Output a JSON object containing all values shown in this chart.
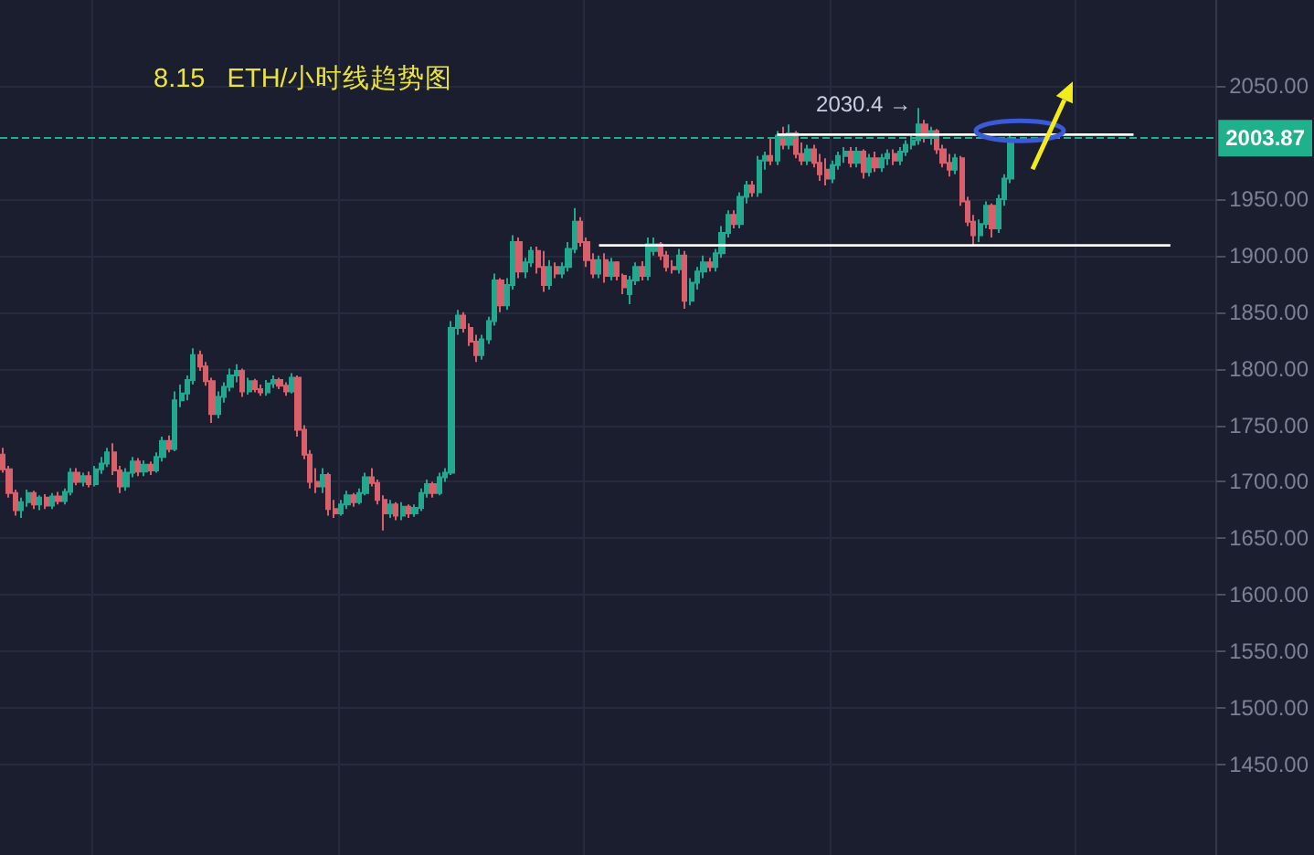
{
  "chart_data": {
    "type": "candlestick",
    "title": "8.15   ETH/小时线趋势图",
    "categories": [
      null,
      null,
      null,
      null,
      null,
      null,
      null,
      null,
      null,
      null,
      null,
      null,
      null,
      null,
      null,
      null,
      null,
      null,
      null,
      null,
      null,
      null,
      null,
      null,
      null,
      null,
      null,
      null,
      null,
      null,
      null,
      null,
      null,
      null,
      null,
      null,
      null,
      null,
      null,
      null,
      null,
      null,
      null,
      null,
      null,
      null,
      null,
      null,
      null,
      null,
      null,
      null,
      null,
      null,
      null,
      null,
      null,
      null,
      null,
      null,
      null,
      null,
      null,
      null,
      null,
      null,
      null,
      null,
      null,
      null,
      null,
      null,
      null,
      null,
      null,
      null,
      null,
      null,
      null,
      null,
      null,
      null,
      null,
      null,
      null,
      null,
      null,
      null,
      null,
      null,
      null,
      null,
      null,
      null,
      null,
      null,
      null,
      null,
      null,
      null,
      null,
      null,
      null,
      null,
      null,
      null,
      null,
      null,
      null,
      null,
      null,
      null,
      null,
      null,
      null,
      null,
      null,
      null,
      null,
      null,
      null,
      null,
      null,
      null,
      null,
      null,
      null,
      null,
      null,
      null,
      null,
      null,
      null,
      null,
      null,
      null,
      null,
      null,
      null,
      null,
      null,
      null,
      null,
      null,
      null,
      null,
      null,
      null,
      null,
      null,
      null,
      null,
      null,
      null,
      null,
      null,
      null,
      null,
      null,
      null,
      null,
      null,
      null,
      null,
      null,
      null,
      null,
      null,
      null,
      null,
      null,
      null,
      null,
      null,
      null,
      null,
      null,
      null,
      null,
      null,
      null,
      null,
      null,
      null,
      null,
      null,
      null,
      null,
      null,
      null,
      null,
      null,
      null,
      null,
      null,
      null,
      null,
      null
    ],
    "ohlc": [
      [
        1724,
        1730,
        1708,
        1711
      ],
      [
        1711,
        1714,
        1686,
        1690
      ],
      [
        1690,
        1693,
        1670,
        1675
      ],
      [
        1675,
        1686,
        1668,
        1682
      ],
      [
        1682,
        1693,
        1678,
        1690
      ],
      [
        1690,
        1692,
        1676,
        1680
      ],
      [
        1680,
        1688,
        1675,
        1686
      ],
      [
        1686,
        1689,
        1676,
        1679
      ],
      [
        1679,
        1690,
        1676,
        1687
      ],
      [
        1687,
        1691,
        1680,
        1683
      ],
      [
        1683,
        1694,
        1680,
        1691
      ],
      [
        1691,
        1712,
        1688,
        1708
      ],
      [
        1708,
        1712,
        1697,
        1700
      ],
      [
        1700,
        1708,
        1696,
        1705
      ],
      [
        1705,
        1709,
        1695,
        1698
      ],
      [
        1698,
        1714,
        1696,
        1711
      ],
      [
        1711,
        1722,
        1707,
        1716
      ],
      [
        1716,
        1730,
        1713,
        1726
      ],
      [
        1726,
        1734,
        1706,
        1710
      ],
      [
        1710,
        1714,
        1690,
        1696
      ],
      [
        1696,
        1712,
        1692,
        1708
      ],
      [
        1708,
        1722,
        1704,
        1718
      ],
      [
        1718,
        1721,
        1705,
        1709
      ],
      [
        1709,
        1719,
        1705,
        1715
      ],
      [
        1715,
        1718,
        1706,
        1710
      ],
      [
        1710,
        1726,
        1708,
        1722
      ],
      [
        1722,
        1740,
        1718,
        1736
      ],
      [
        1736,
        1741,
        1726,
        1729
      ],
      [
        1729,
        1780,
        1727,
        1772
      ],
      [
        1772,
        1786,
        1766,
        1778
      ],
      [
        1778,
        1794,
        1772,
        1790
      ],
      [
        1790,
        1818,
        1786,
        1812
      ],
      [
        1812,
        1816,
        1798,
        1802
      ],
      [
        1802,
        1806,
        1785,
        1789
      ],
      [
        1789,
        1792,
        1752,
        1760
      ],
      [
        1760,
        1780,
        1756,
        1775
      ],
      [
        1775,
        1788,
        1770,
        1784
      ],
      [
        1784,
        1800,
        1780,
        1794
      ],
      [
        1794,
        1804,
        1788,
        1798
      ],
      [
        1798,
        1800,
        1775,
        1780
      ],
      [
        1780,
        1792,
        1777,
        1789
      ],
      [
        1789,
        1791,
        1779,
        1782
      ],
      [
        1782,
        1786,
        1776,
        1779
      ],
      [
        1779,
        1790,
        1776,
        1787
      ],
      [
        1787,
        1794,
        1783,
        1790
      ],
      [
        1790,
        1792,
        1782,
        1785
      ],
      [
        1785,
        1788,
        1776,
        1780
      ],
      [
        1780,
        1796,
        1778,
        1792
      ],
      [
        1792,
        1794,
        1740,
        1746
      ],
      [
        1746,
        1750,
        1720,
        1724
      ],
      [
        1724,
        1728,
        1694,
        1700
      ],
      [
        1700,
        1712,
        1690,
        1696
      ],
      [
        1696,
        1712,
        1690,
        1706
      ],
      [
        1706,
        1708,
        1670,
        1676
      ],
      [
        1676,
        1684,
        1668,
        1672
      ],
      [
        1672,
        1684,
        1670,
        1680
      ],
      [
        1680,
        1692,
        1676,
        1688
      ],
      [
        1688,
        1690,
        1678,
        1682
      ],
      [
        1682,
        1694,
        1680,
        1690
      ],
      [
        1690,
        1708,
        1688,
        1704
      ],
      [
        1704,
        1712,
        1696,
        1699
      ],
      [
        1699,
        1702,
        1680,
        1684
      ],
      [
        1684,
        1688,
        1657,
        1672
      ],
      [
        1672,
        1684,
        1668,
        1680
      ],
      [
        1680,
        1682,
        1666,
        1670
      ],
      [
        1670,
        1682,
        1666,
        1678
      ],
      [
        1678,
        1680,
        1668,
        1672
      ],
      [
        1672,
        1680,
        1669,
        1677
      ],
      [
        1677,
        1694,
        1674,
        1690
      ],
      [
        1690,
        1702,
        1686,
        1698
      ],
      [
        1698,
        1700,
        1686,
        1690
      ],
      [
        1690,
        1708,
        1688,
        1704
      ],
      [
        1704,
        1712,
        1700,
        1708
      ],
      [
        1708,
        1842,
        1706,
        1836
      ],
      [
        1836,
        1852,
        1830,
        1847
      ],
      [
        1847,
        1850,
        1832,
        1836
      ],
      [
        1836,
        1840,
        1820,
        1824
      ],
      [
        1824,
        1830,
        1806,
        1812
      ],
      [
        1812,
        1830,
        1808,
        1826
      ],
      [
        1826,
        1846,
        1822,
        1842
      ],
      [
        1842,
        1884,
        1838,
        1878
      ],
      [
        1878,
        1880,
        1850,
        1856
      ],
      [
        1856,
        1880,
        1852,
        1874
      ],
      [
        1874,
        1918,
        1870,
        1912
      ],
      [
        1912,
        1916,
        1880,
        1886
      ],
      [
        1886,
        1898,
        1880,
        1894
      ],
      [
        1894,
        1908,
        1890,
        1904
      ],
      [
        1904,
        1908,
        1884,
        1890
      ],
      [
        1890,
        1904,
        1868,
        1874
      ],
      [
        1874,
        1896,
        1870,
        1890
      ],
      [
        1890,
        1894,
        1880,
        1884
      ],
      [
        1884,
        1894,
        1880,
        1890
      ],
      [
        1890,
        1912,
        1886,
        1906
      ],
      [
        1906,
        1942,
        1902,
        1930
      ],
      [
        1930,
        1934,
        1908,
        1912
      ],
      [
        1912,
        1916,
        1890,
        1896
      ],
      [
        1896,
        1902,
        1880,
        1884
      ],
      [
        1884,
        1900,
        1880,
        1896
      ],
      [
        1896,
        1902,
        1876,
        1882
      ],
      [
        1882,
        1898,
        1878,
        1894
      ],
      [
        1894,
        1895,
        1878,
        1882
      ],
      [
        1882,
        1884,
        1866,
        1872
      ],
      [
        1866,
        1882,
        1857,
        1878
      ],
      [
        1878,
        1894,
        1874,
        1890
      ],
      [
        1890,
        1895,
        1878,
        1882
      ],
      [
        1882,
        1916,
        1878,
        1910
      ],
      [
        1904,
        1916,
        1900,
        1910
      ],
      [
        1910,
        1912,
        1896,
        1900
      ],
      [
        1900,
        1904,
        1886,
        1890
      ],
      [
        1890,
        1896,
        1884,
        1888
      ],
      [
        1888,
        1906,
        1884,
        1900
      ],
      [
        1900,
        1904,
        1853,
        1860
      ],
      [
        1860,
        1880,
        1856,
        1876
      ],
      [
        1876,
        1890,
        1870,
        1886
      ],
      [
        1886,
        1900,
        1880,
        1894
      ],
      [
        1894,
        1898,
        1886,
        1890
      ],
      [
        1890,
        1906,
        1886,
        1902
      ],
      [
        1902,
        1926,
        1898,
        1920
      ],
      [
        1920,
        1940,
        1916,
        1936
      ],
      [
        1936,
        1940,
        1924,
        1928
      ],
      [
        1928,
        1956,
        1924,
        1952
      ],
      [
        1952,
        1966,
        1946,
        1962
      ],
      [
        1962,
        1966,
        1952,
        1956
      ],
      [
        1956,
        1988,
        1952,
        1984
      ],
      [
        1984,
        1992,
        1976,
        1988
      ],
      [
        1988,
        2004,
        1980,
        1984
      ],
      [
        1984,
        2010,
        1980,
        2006
      ],
      [
        2006,
        2014,
        1994,
        1998
      ],
      [
        1998,
        2016,
        1994,
        2008
      ],
      [
        2008,
        2010,
        1986,
        1990
      ],
      [
        1990,
        2000,
        1980,
        1984
      ],
      [
        1984,
        1998,
        1980,
        1994
      ],
      [
        1994,
        1998,
        1978,
        1982
      ],
      [
        1982,
        1990,
        1966,
        1972
      ],
      [
        1976,
        1986,
        1962,
        1968
      ],
      [
        1968,
        1984,
        1964,
        1980
      ],
      [
        1980,
        1992,
        1976,
        1988
      ],
      [
        1988,
        1996,
        1982,
        1992
      ],
      [
        1992,
        1996,
        1978,
        1982
      ],
      [
        1982,
        1996,
        1978,
        1992
      ],
      [
        1992,
        1994,
        1968,
        1974
      ],
      [
        1974,
        1990,
        1970,
        1986
      ],
      [
        1986,
        1992,
        1974,
        1978
      ],
      [
        1978,
        1990,
        1974,
        1986
      ],
      [
        1986,
        1994,
        1980,
        1990
      ],
      [
        1990,
        1994,
        1980,
        1984
      ],
      [
        1984,
        1996,
        1980,
        1992
      ],
      [
        1992,
        2002,
        1988,
        1998
      ],
      [
        1998,
        2006,
        1994,
        2002
      ],
      [
        2002,
        2030.4,
        1998,
        2016
      ],
      [
        2016,
        2020,
        2000,
        2004
      ],
      [
        2004,
        2014,
        1998,
        2010
      ],
      [
        2010,
        2012,
        1990,
        1994
      ],
      [
        1994,
        1998,
        1978,
        1982
      ],
      [
        1982,
        1990,
        1970,
        1976
      ],
      [
        1976,
        1990,
        1972,
        1986
      ],
      [
        1986,
        1988,
        1944,
        1948
      ],
      [
        1948,
        1952,
        1926,
        1930
      ],
      [
        1930,
        1936,
        1909,
        1918
      ],
      [
        1918,
        1932,
        1912,
        1928
      ],
      [
        1928,
        1948,
        1924,
        1944
      ],
      [
        1944,
        1946,
        1916,
        1924
      ],
      [
        1924,
        1954,
        1920,
        1950
      ],
      [
        1950,
        1972,
        1944,
        1968
      ],
      [
        1968,
        2008,
        1964,
        2003.87
      ],
      null,
      null,
      null,
      null,
      null,
      null,
      null,
      null,
      null,
      null,
      null,
      null,
      null,
      null,
      null,
      null,
      null,
      null,
      null,
      null,
      null,
      null,
      null,
      null,
      null,
      null,
      null,
      null,
      null,
      null,
      null,
      null,
      null
    ],
    "colors": [
      "#d95f6a",
      "#d95f6a",
      "#d95f6a",
      "#22a88e",
      "#22a88e",
      "#d95f6a",
      "#22a88e",
      "#d95f6a",
      "#22a88e",
      "#d95f6a",
      "#22a88e",
      "#22a88e",
      "#d95f6a",
      "#22a88e",
      "#d95f6a",
      "#22a88e",
      "#22a88e",
      "#22a88e",
      "#d95f6a",
      "#d95f6a",
      "#22a88e",
      "#22a88e",
      "#d95f6a",
      "#22a88e",
      "#d95f6a",
      "#22a88e",
      "#22a88e",
      "#d95f6a",
      "#22a88e",
      "#22a88e",
      "#22a88e",
      "#22a88e",
      "#d95f6a",
      "#d95f6a",
      "#d95f6a",
      "#22a88e",
      "#22a88e",
      "#22a88e",
      "#22a88e",
      "#d95f6a",
      "#22a88e",
      "#d95f6a",
      "#d95f6a",
      "#22a88e",
      "#22a88e",
      "#d95f6a",
      "#d95f6a",
      "#22a88e",
      "#d95f6a",
      "#d95f6a",
      "#d95f6a",
      "#d95f6a",
      "#22a88e",
      "#d95f6a",
      "#d95f6a",
      "#22a88e",
      "#22a88e",
      "#d95f6a",
      "#22a88e",
      "#22a88e",
      "#d95f6a",
      "#d95f6a",
      "#d95f6a",
      "#22a88e",
      "#d95f6a",
      "#22a88e",
      "#d95f6a",
      "#22a88e",
      "#22a88e",
      "#22a88e",
      "#d95f6a",
      "#22a88e",
      "#22a88e",
      "#22a88e",
      "#22a88e",
      "#d95f6a",
      "#d95f6a",
      "#d95f6a",
      "#22a88e",
      "#22a88e",
      "#22a88e",
      "#d95f6a",
      "#22a88e",
      "#22a88e",
      "#d95f6a",
      "#22a88e",
      "#22a88e",
      "#d95f6a",
      "#d95f6a",
      "#22a88e",
      "#d95f6a",
      "#22a88e",
      "#22a88e",
      "#22a88e",
      "#d95f6a",
      "#d95f6a",
      "#d95f6a",
      "#22a88e",
      "#d95f6a",
      "#22a88e",
      "#d95f6a",
      "#d95f6a",
      "#22a88e",
      "#22a88e",
      "#d95f6a",
      "#22a88e",
      "#22a88e",
      "#d95f6a",
      "#d95f6a",
      "#d95f6a",
      "#22a88e",
      "#d95f6a",
      "#22a88e",
      "#22a88e",
      "#22a88e",
      "#d95f6a",
      "#22a88e",
      "#22a88e",
      "#22a88e",
      "#d95f6a",
      "#22a88e",
      "#22a88e",
      "#d95f6a",
      "#22a88e",
      "#22a88e",
      "#d95f6a",
      "#22a88e",
      "#d95f6a",
      "#22a88e",
      "#d95f6a",
      "#d95f6a",
      "#22a88e",
      "#d95f6a",
      "#d95f6a",
      "#d95f6a",
      "#22a88e",
      "#22a88e",
      "#22a88e",
      "#d95f6a",
      "#22a88e",
      "#d95f6a",
      "#22a88e",
      "#d95f6a",
      "#22a88e",
      "#22a88e",
      "#d95f6a",
      "#22a88e",
      "#22a88e",
      "#22a88e",
      "#22a88e",
      "#d95f6a",
      "#22a88e",
      "#d95f6a",
      "#d95f6a",
      "#d95f6a",
      "#22a88e",
      "#d95f6a",
      "#d95f6a",
      "#d95f6a",
      "#22a88e",
      "#22a88e",
      "#d95f6a",
      "#22a88e",
      "#22a88e",
      "#22a88e",
      null,
      null,
      null,
      null,
      null,
      null,
      null,
      null,
      null,
      null,
      null,
      null,
      null,
      null,
      null,
      null,
      null,
      null,
      null,
      null,
      null,
      null,
      null,
      null,
      null,
      null,
      null,
      null,
      null,
      null,
      null,
      null,
      null
    ],
    "series": [
      {
        "type": "line",
        "color": "#ffffff",
        "values": [
          null,
          null,
          null,
          null,
          null,
          null,
          null,
          null,
          null,
          null,
          null,
          null,
          null,
          null,
          null,
          null,
          null,
          null,
          null,
          null,
          null,
          null,
          null,
          null,
          null,
          null,
          null,
          null,
          null,
          null,
          null,
          null,
          null,
          null,
          null,
          null,
          null,
          null,
          null,
          null,
          null,
          null,
          null,
          null,
          null,
          null,
          null,
          null,
          null,
          null,
          null,
          null,
          null,
          null,
          null,
          null,
          null,
          null,
          null,
          null,
          null,
          null,
          null,
          null,
          null,
          null,
          null,
          null,
          null,
          null,
          null,
          null,
          null,
          null,
          null,
          null,
          null,
          null,
          null,
          null,
          null,
          null,
          null,
          null,
          null,
          null,
          null,
          null,
          null,
          null,
          null,
          null,
          null,
          null,
          null,
          null,
          null,
          1909,
          1909,
          1909,
          1909,
          1909,
          1909,
          1909,
          1909,
          1909,
          1909,
          1909,
          1909,
          1909,
          1909,
          1909,
          1909,
          1909,
          1909,
          1909,
          1909,
          1909,
          1909,
          1909,
          1909,
          1909,
          1909,
          1909,
          1909,
          1909,
          1909,
          1909,
          1909,
          1909,
          1909,
          1909,
          1909,
          1909,
          1909,
          1909,
          1909,
          1909,
          1909,
          1909,
          1909,
          1909,
          1909,
          1909,
          1909,
          1909,
          1909,
          1909,
          1909,
          1909,
          1909,
          1909,
          1909,
          1909,
          1909,
          1909,
          1909,
          1909,
          1909,
          1909,
          1909,
          1909,
          1909,
          1909,
          1909,
          1909,
          1909,
          1909,
          1909,
          1909,
          1909,
          1909,
          1909,
          1909,
          1909,
          1909,
          1909,
          1909,
          1909,
          1909,
          1909,
          1909,
          1909,
          1909,
          1909,
          1909,
          1909,
          1909,
          1909,
          1909,
          1909,
          null,
          null,
          null,
          null,
          null,
          null,
          null
        ]
      },
      {
        "type": "line",
        "color": "#ffffff",
        "values": [
          null,
          null,
          null,
          null,
          null,
          null,
          null,
          null,
          null,
          null,
          null,
          null,
          null,
          null,
          null,
          null,
          null,
          null,
          null,
          null,
          null,
          null,
          null,
          null,
          null,
          null,
          null,
          null,
          null,
          null,
          null,
          null,
          null,
          null,
          null,
          null,
          null,
          null,
          null,
          null,
          null,
          null,
          null,
          null,
          null,
          null,
          null,
          null,
          null,
          null,
          null,
          null,
          null,
          null,
          null,
          null,
          null,
          null,
          null,
          null,
          null,
          null,
          null,
          null,
          null,
          null,
          null,
          null,
          null,
          null,
          null,
          null,
          null,
          null,
          null,
          null,
          null,
          null,
          null,
          null,
          null,
          null,
          null,
          null,
          null,
          null,
          null,
          null,
          null,
          null,
          null,
          null,
          null,
          null,
          null,
          null,
          null,
          null,
          null,
          null,
          null,
          null,
          null,
          null,
          null,
          null,
          null,
          null,
          null,
          null,
          null,
          null,
          null,
          null,
          null,
          null,
          null,
          null,
          null,
          null,
          null,
          null,
          null,
          null,
          null,
          null,
          2007,
          2007,
          2007,
          2007,
          2007,
          2007,
          2007,
          2007,
          2007,
          2007,
          2007,
          2007,
          2007,
          2007,
          2007,
          2007,
          2007,
          2007,
          2007,
          2007,
          2007,
          2007,
          2007,
          2007,
          2007,
          2007,
          2007,
          2007,
          2007,
          2007,
          2007,
          2007,
          2007,
          2007,
          2007,
          2007,
          2007,
          2007,
          2007,
          2007,
          2007,
          2007,
          2007,
          2007,
          2007,
          2007,
          2007,
          2007,
          2007,
          2007,
          2007,
          2007,
          2007,
          2007,
          2007,
          2007,
          2007,
          2007,
          2007,
          null,
          null,
          null,
          null,
          null,
          null,
          null,
          null,
          null,
          null,
          null,
          null,
          null
        ]
      }
    ],
    "ylim": [
      1370,
      2126
    ],
    "yticks": [
      {
        "value": 1450,
        "label": "1450.00"
      },
      {
        "value": 1500,
        "label": "1500.00"
      },
      {
        "value": 1550,
        "label": "1550.00"
      },
      {
        "value": 1600,
        "label": "1600.00"
      },
      {
        "value": 1650,
        "label": "1650.00"
      },
      {
        "value": 1700,
        "label": "1700.00"
      },
      {
        "value": 1750,
        "label": "1750.00"
      },
      {
        "value": 1800,
        "label": "1800.00"
      },
      {
        "value": 1850,
        "label": "1850.00"
      },
      {
        "value": 1900,
        "label": "1900.00"
      },
      {
        "value": 1950,
        "label": "1950.00"
      },
      {
        "value": 2050,
        "label": "2050.00"
      }
    ],
    "ref_lines": [
      {
        "axis": "y",
        "value": 2003.87,
        "label": "2003.87",
        "color": "#1fb08c",
        "line_style": "dashed"
      }
    ],
    "annotations": [
      "2030.4 →"
    ],
    "grid": true,
    "tick_labels": "y"
  }
}
